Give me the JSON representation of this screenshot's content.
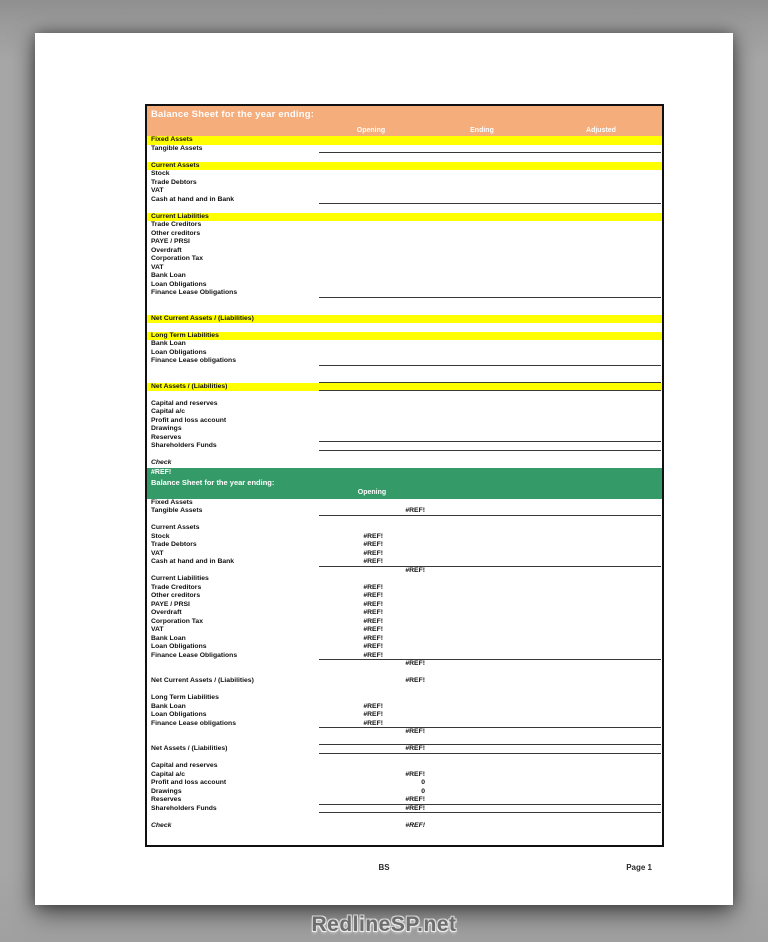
{
  "colors": {
    "accent_orange": "#f5ad7c",
    "accent_yellow": "#ffff00",
    "accent_green": "#349a68"
  },
  "page": {
    "footer_center": "BS",
    "footer_right": "Page 1",
    "watermark": "RedlineSP.net"
  },
  "sheet1": {
    "title": "Balance Sheet for the year ending:",
    "columns": [
      "Opening",
      "Ending",
      "Adjusted"
    ],
    "rows": [
      {
        "type": "y",
        "label": "Fixed Assets"
      },
      {
        "type": "i",
        "label": "Tangible Assets",
        "underline": 1
      },
      {
        "type": "s"
      },
      {
        "type": "y",
        "label": "Current Assets"
      },
      {
        "type": "i",
        "label": "Stock"
      },
      {
        "type": "i",
        "label": "Trade Debtors"
      },
      {
        "type": "i",
        "label": "VAT"
      },
      {
        "type": "i",
        "label": "Cash at hand and in Bank",
        "underline": 1
      },
      {
        "type": "s"
      },
      {
        "type": "y",
        "label": "Current Liabilities"
      },
      {
        "type": "i",
        "label": "Trade Creditors"
      },
      {
        "type": "i",
        "label": "Other creditors"
      },
      {
        "type": "i",
        "label": "PAYE / PRSI"
      },
      {
        "type": "i",
        "label": "Overdraft"
      },
      {
        "type": "i",
        "label": "Corporation Tax"
      },
      {
        "type": "i",
        "label": "VAT"
      },
      {
        "type": "i",
        "label": "Bank Loan"
      },
      {
        "type": "i",
        "label": "Loan Obligations"
      },
      {
        "type": "i",
        "label": "Finance Lease Obligations",
        "underline": 1
      },
      {
        "type": "s"
      },
      {
        "type": "s"
      },
      {
        "type": "y",
        "label": "Net Current Assets / (Liabilities)"
      },
      {
        "type": "s"
      },
      {
        "type": "y",
        "label": "Long Term Liabilities"
      },
      {
        "type": "i",
        "label": "Bank Loan"
      },
      {
        "type": "i",
        "label": "Loan Obligations"
      },
      {
        "type": "i",
        "label": "Finance Lease obligations",
        "underline": 1
      },
      {
        "type": "s"
      },
      {
        "type": "s",
        "underline": 1
      },
      {
        "type": "y",
        "label": "Net Assets / (Liabilities)",
        "underline": 1
      },
      {
        "type": "s"
      },
      {
        "type": "b",
        "label": "Capital and reserves"
      },
      {
        "type": "i",
        "label": "Capital a/c"
      },
      {
        "type": "i",
        "label": "Profit and loss account"
      },
      {
        "type": "i",
        "label": "Drawings"
      },
      {
        "type": "i",
        "label": "Reserves",
        "underline": 1
      },
      {
        "type": "b",
        "label": "Shareholders Funds",
        "underline": 1
      },
      {
        "type": "s"
      },
      {
        "type": "bi",
        "label": "Check"
      }
    ]
  },
  "sheet2": {
    "ref_label": "#REF!",
    "title": "Balance Sheet for the year ending:",
    "column": "Opening",
    "rows": [
      {
        "type": "b",
        "label": "Fixed Assets"
      },
      {
        "type": "i",
        "label": "Tangible Assets",
        "value_total": "#REF!",
        "underline": 1
      },
      {
        "type": "s"
      },
      {
        "type": "b",
        "label": "Current Assets"
      },
      {
        "type": "i",
        "label": "Stock",
        "value_detail": "#REF!"
      },
      {
        "type": "i",
        "label": "Trade Debtors",
        "value_detail": "#REF!"
      },
      {
        "type": "i",
        "label": "VAT",
        "value_detail": "#REF!"
      },
      {
        "type": "i",
        "label": "Cash at hand and in Bank",
        "value_detail": "#REF!",
        "underline": 1
      },
      {
        "type": "t",
        "value_total": "#REF!"
      },
      {
        "type": "b",
        "label": "Current Liabilities"
      },
      {
        "type": "i",
        "label": "Trade Creditors",
        "value_detail": "#REF!"
      },
      {
        "type": "i",
        "label": "Other creditors",
        "value_detail": "#REF!"
      },
      {
        "type": "i",
        "label": "PAYE / PRSI",
        "value_detail": "#REF!"
      },
      {
        "type": "i",
        "label": "Overdraft",
        "value_detail": "#REF!"
      },
      {
        "type": "i",
        "label": "Corporation Tax",
        "value_detail": "#REF!"
      },
      {
        "type": "i",
        "label": "VAT",
        "value_detail": "#REF!"
      },
      {
        "type": "i",
        "label": "Bank Loan",
        "value_detail": "#REF!"
      },
      {
        "type": "i",
        "label": "Loan Obligations",
        "value_detail": "#REF!"
      },
      {
        "type": "i",
        "label": "Finance Lease Obligations",
        "value_detail": "#REF!",
        "underline": 1
      },
      {
        "type": "t",
        "value_total": "#REF!"
      },
      {
        "type": "s"
      },
      {
        "type": "b",
        "label": "Net Current Assets / (Liabilities)",
        "value_total": "#REF!"
      },
      {
        "type": "s"
      },
      {
        "type": "b",
        "label": "Long Term Liabilities"
      },
      {
        "type": "i",
        "label": "Bank Loan",
        "value_detail": "#REF!"
      },
      {
        "type": "i",
        "label": "Loan Obligations",
        "value_detail": "#REF!"
      },
      {
        "type": "i",
        "label": "Finance Lease obligations",
        "value_detail": "#REF!",
        "underline": 1
      },
      {
        "type": "t",
        "value_total": "#REF!"
      },
      {
        "type": "s",
        "underline": 1
      },
      {
        "type": "b",
        "label": "Net Assets / (Liabilities)",
        "value_total": "#REF!",
        "underline": 1
      },
      {
        "type": "s"
      },
      {
        "type": "b",
        "label": "Capital and reserves"
      },
      {
        "type": "i",
        "label": "Capital a/c",
        "value_total": "#REF!"
      },
      {
        "type": "i",
        "label": "Profit and loss account",
        "value_total": "0"
      },
      {
        "type": "i",
        "label": "Drawings",
        "value_total": "0"
      },
      {
        "type": "i",
        "label": "Reserves",
        "value_total": "#REF!",
        "underline": 1
      },
      {
        "type": "b",
        "label": "Shareholders Funds",
        "value_total": "#REF!",
        "underline": 1
      },
      {
        "type": "s"
      },
      {
        "type": "bi",
        "label": "Check",
        "value_total": "#REF!",
        "italic_value": 1
      },
      {
        "type": "s"
      }
    ]
  }
}
